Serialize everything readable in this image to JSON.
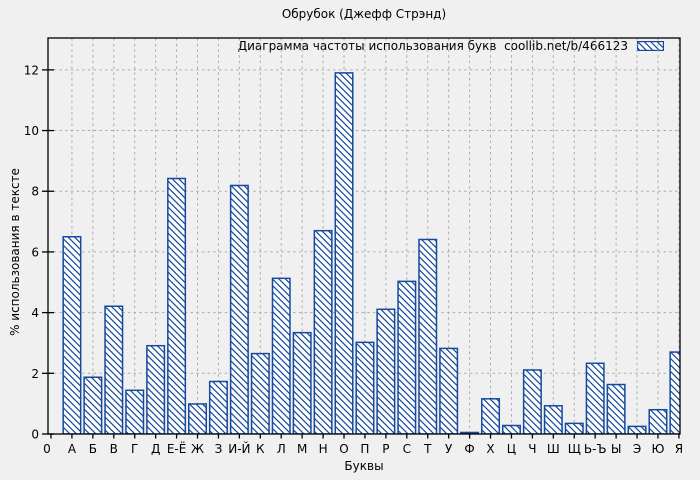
{
  "window": {
    "background_color": "#f0f0f0"
  },
  "chart_data": {
    "type": "bar",
    "title": "Обрубок (Джефф Стрэнд)",
    "legend_label": "Диаграмма частоты использования букв  coollib.net/b/466123",
    "xlabel": "Буквы",
    "ylabel": "% использования в тексте",
    "x_origin_label": "0",
    "categories": [
      "А",
      "Б",
      "В",
      "Г",
      "Д",
      "Е-Ё",
      "Ж",
      "З",
      "И-Й",
      "К",
      "Л",
      "М",
      "Н",
      "О",
      "П",
      "Р",
      "С",
      "Т",
      "У",
      "Ф",
      "Х",
      "Ц",
      "Ч",
      "Ш",
      "Щ",
      "Ь-Ъ",
      "Ы",
      "Э",
      "Ю",
      "Я"
    ],
    "values": [
      6.5,
      1.87,
      4.21,
      1.44,
      2.91,
      8.42,
      0.99,
      1.73,
      8.19,
      2.65,
      5.13,
      3.34,
      6.7,
      11.9,
      3.02,
      4.11,
      5.03,
      6.41,
      2.82,
      0.05,
      1.16,
      0.28,
      2.11,
      0.93,
      0.35,
      2.33,
      1.63,
      0.25,
      0.8,
      2.7
    ],
    "yticks": [
      0,
      2,
      4,
      6,
      8,
      10,
      12
    ],
    "ylim": [
      0,
      13.05
    ],
    "grid": true,
    "legend_position": "top-right-inside",
    "bar_style": "diagonal-hatch",
    "colors": {
      "bar_edge": "#15499d",
      "bar_fill": "#fdfdfd",
      "grid": "#ababab",
      "axis": "#000000",
      "background": "#f0f0f0",
      "text": "#000000"
    }
  }
}
